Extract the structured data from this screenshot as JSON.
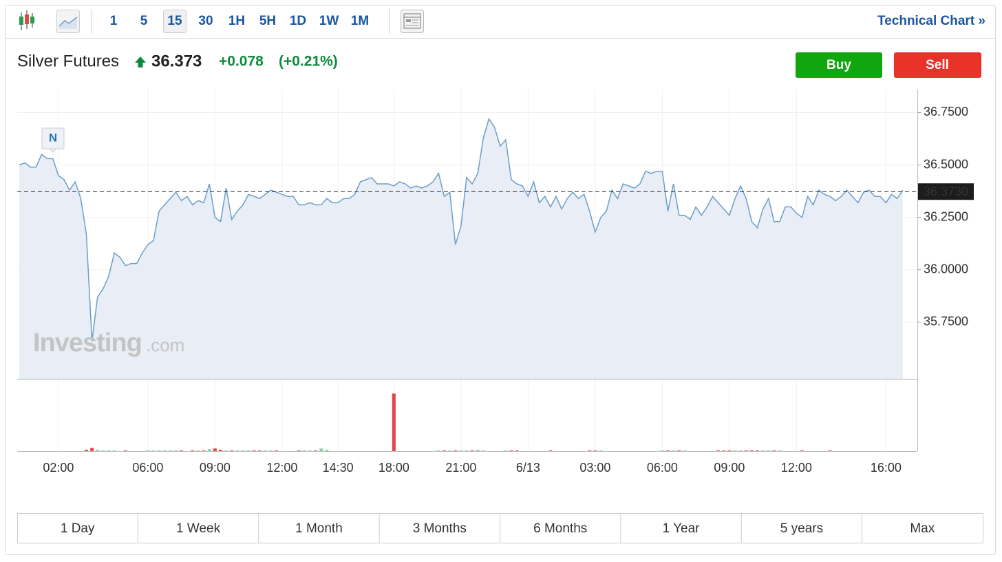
{
  "toolbar": {
    "intervals": [
      "1",
      "5",
      "15",
      "30",
      "1H",
      "5H",
      "1D",
      "1W",
      "1M"
    ],
    "active_index": 2,
    "technical_chart": "Technical Chart »"
  },
  "header": {
    "instrument": "Silver Futures",
    "price": "36.373",
    "change": "+0.078",
    "change_percent": "(+0.21%)"
  },
  "actions": {
    "buy": "Buy",
    "sell": "Sell"
  },
  "watermark": {
    "brand": "Investing",
    "suffix": ".com"
  },
  "ranges": [
    "1 Day",
    "1 Week",
    "1 Month",
    "3 Months",
    "6 Months",
    "1 Year",
    "5 years",
    "Max"
  ],
  "chart_data": {
    "type": "area",
    "categories": [
      null,
      null,
      null,
      null,
      null,
      null,
      null,
      "02:00",
      null,
      null,
      null,
      null,
      null,
      null,
      null,
      null,
      null,
      null,
      null,
      null,
      null,
      null,
      null,
      "06:00",
      null,
      null,
      null,
      null,
      null,
      null,
      null,
      null,
      null,
      null,
      null,
      "09:00",
      null,
      null,
      null,
      null,
      null,
      null,
      null,
      null,
      null,
      null,
      null,
      "12:00",
      null,
      null,
      null,
      null,
      null,
      null,
      null,
      null,
      null,
      "14:30",
      null,
      null,
      null,
      null,
      null,
      null,
      null,
      null,
      null,
      "18:00",
      null,
      null,
      null,
      null,
      null,
      null,
      null,
      null,
      null,
      null,
      null,
      "21:00",
      null,
      null,
      null,
      null,
      null,
      null,
      null,
      null,
      null,
      null,
      null,
      "6/13",
      null,
      null,
      null,
      null,
      null,
      null,
      null,
      null,
      null,
      null,
      null,
      "03:00",
      null,
      null,
      null,
      null,
      null,
      null,
      null,
      null,
      null,
      null,
      null,
      "06:00",
      null,
      null,
      null,
      null,
      null,
      null,
      null,
      null,
      null,
      null,
      null,
      "09:00",
      null,
      null,
      null,
      null,
      null,
      null,
      null,
      null,
      null,
      null,
      null,
      "12:00",
      null,
      null,
      null,
      null,
      null,
      null,
      null,
      null,
      null,
      null,
      null,
      null,
      null,
      null,
      null,
      "16:00",
      null,
      null,
      null
    ],
    "values": [
      36.5,
      36.51,
      36.49,
      36.49,
      36.55,
      36.53,
      36.53,
      36.45,
      36.43,
      36.38,
      36.42,
      36.34,
      36.17,
      35.66,
      35.87,
      35.91,
      35.97,
      36.08,
      36.06,
      36.02,
      36.03,
      36.03,
      36.08,
      36.12,
      36.14,
      36.28,
      36.31,
      36.34,
      36.37,
      36.33,
      36.35,
      36.31,
      36.33,
      36.32,
      36.41,
      36.25,
      36.23,
      36.39,
      36.24,
      36.28,
      36.31,
      36.36,
      36.35,
      36.34,
      36.36,
      36.38,
      36.37,
      36.36,
      36.35,
      36.35,
      36.31,
      36.31,
      36.32,
      36.31,
      36.31,
      36.34,
      36.32,
      36.32,
      36.34,
      36.34,
      36.36,
      36.42,
      36.43,
      36.44,
      36.41,
      36.41,
      36.41,
      36.4,
      36.42,
      36.41,
      36.39,
      36.4,
      36.39,
      36.4,
      36.42,
      36.46,
      36.35,
      36.37,
      36.12,
      36.21,
      36.44,
      36.41,
      36.46,
      36.63,
      36.72,
      36.68,
      36.59,
      36.62,
      36.43,
      36.41,
      36.4,
      36.35,
      36.42,
      36.32,
      36.35,
      36.3,
      36.35,
      36.29,
      36.34,
      36.37,
      36.34,
      36.36,
      36.28,
      36.18,
      36.25,
      36.28,
      36.38,
      36.34,
      36.41,
      36.4,
      36.39,
      36.41,
      36.47,
      36.46,
      36.47,
      36.47,
      36.28,
      36.41,
      36.26,
      36.26,
      36.24,
      36.3,
      36.26,
      36.3,
      36.35,
      36.32,
      36.29,
      36.26,
      36.34,
      36.4,
      36.34,
      36.23,
      36.2,
      36.29,
      36.34,
      36.23,
      36.23,
      36.3,
      36.3,
      36.27,
      36.25,
      36.35,
      36.31,
      36.38,
      36.36,
      36.35,
      36.33,
      36.35,
      36.38,
      36.35,
      36.32,
      36.37,
      36.38,
      36.35,
      36.35,
      36.32,
      36.36,
      36.34,
      36.38
    ],
    "color": "#6a9ec8",
    "fill": "#e8edf6",
    "annotation": "N",
    "last_price": {
      "value": 36.373,
      "label": "36.3730"
    },
    "ylim": [
      35.48,
      36.86
    ],
    "yticks": [
      {
        "value": 35.75,
        "label": "35.7500"
      },
      {
        "value": 36.0,
        "label": "36.0000"
      },
      {
        "value": 36.25,
        "label": "36.2500"
      },
      {
        "value": 36.5,
        "label": "36.5000"
      },
      {
        "value": 36.75,
        "label": "36.7500"
      }
    ],
    "grid": true,
    "volume": {
      "values": [
        0,
        0,
        0,
        0,
        0,
        0,
        0,
        0,
        0,
        0,
        0,
        0,
        2,
        5,
        2,
        1,
        1,
        1,
        0,
        1,
        0,
        0,
        0,
        1,
        1,
        1,
        1,
        1,
        1,
        1,
        0,
        1,
        1,
        1,
        3,
        4,
        2,
        1,
        1,
        1,
        1,
        1,
        1,
        1,
        1,
        1,
        1,
        0,
        0,
        0,
        1,
        1,
        1,
        1,
        4,
        2,
        0,
        0,
        0,
        0,
        0,
        0,
        0,
        0,
        0,
        0,
        0,
        88,
        0,
        0,
        0,
        0,
        0,
        0,
        0,
        1,
        1,
        1,
        1,
        1,
        1,
        1,
        2,
        1,
        0,
        0,
        0,
        1,
        1,
        1,
        0,
        0,
        0,
        0,
        0,
        1,
        0,
        0,
        0,
        0,
        0,
        0,
        1,
        1,
        1,
        0,
        0,
        0,
        0,
        0,
        0,
        0,
        0,
        0,
        0,
        1,
        1,
        1,
        1,
        1,
        0,
        0,
        0,
        0,
        0,
        1,
        1,
        1,
        1,
        1,
        1,
        1,
        1,
        1,
        1,
        1,
        1,
        0,
        0,
        0,
        1,
        0,
        0,
        0,
        0,
        1,
        0,
        0,
        0,
        0,
        0,
        0,
        0,
        0,
        0,
        0,
        0,
        0,
        0
      ],
      "ylim": [
        0,
        100
      ],
      "up_color": "#8fd1a7",
      "down_color": "#e0474c"
    }
  }
}
